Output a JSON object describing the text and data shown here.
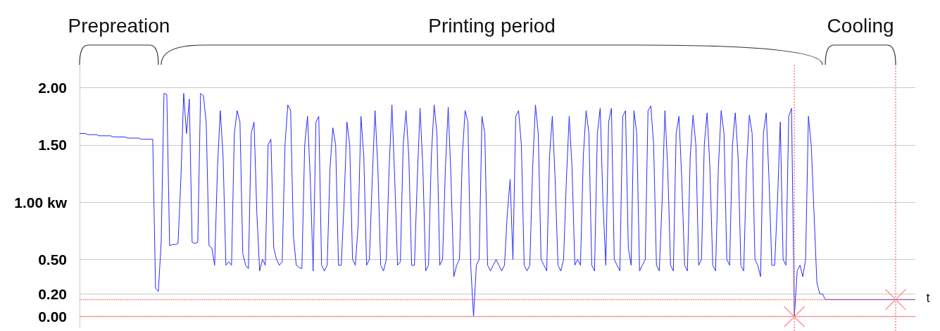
{
  "chart_data": {
    "type": "line",
    "categories": [
      null,
      null,
      null,
      null,
      null,
      null,
      null,
      null,
      null,
      null,
      null,
      null,
      null,
      null,
      null,
      null,
      null,
      null,
      null,
      null,
      null,
      null,
      null,
      null,
      null,
      null,
      null,
      null,
      null,
      null,
      null,
      null,
      null,
      null,
      null,
      null,
      null,
      null,
      null,
      null,
      null,
      null,
      null,
      null,
      null,
      null,
      null,
      null,
      null,
      null,
      null,
      null,
      null,
      null,
      null,
      null,
      null,
      null,
      null,
      null,
      null,
      null,
      null,
      null,
      null,
      null,
      null,
      null,
      null,
      null,
      null,
      null,
      null,
      null,
      null,
      null,
      null,
      null,
      null,
      null,
      null,
      null,
      null,
      null,
      null,
      null,
      null,
      null,
      null,
      null,
      null,
      null,
      null,
      null,
      null,
      null,
      null,
      null,
      null,
      null,
      null,
      null,
      null,
      null,
      null,
      null,
      null,
      null,
      null,
      null,
      null,
      null,
      null,
      null,
      null,
      null,
      null,
      null,
      null,
      null,
      null,
      null,
      null,
      null,
      null,
      null,
      null,
      null,
      null,
      null,
      null,
      null,
      null,
      null,
      null,
      null,
      null,
      null,
      null,
      null,
      null,
      null,
      null,
      null,
      null,
      null,
      null,
      null,
      null,
      null,
      null,
      null,
      null,
      null,
      null,
      null,
      null,
      null,
      null,
      null,
      null,
      null,
      null,
      null,
      null,
      null,
      null,
      null,
      null,
      null,
      null,
      null,
      null,
      null,
      null,
      null,
      null,
      null,
      null,
      null,
      null,
      null,
      null,
      null,
      null,
      null,
      null,
      null,
      null,
      null,
      null,
      null,
      null,
      null,
      null,
      null,
      null,
      null,
      null,
      null,
      null,
      null,
      null,
      null,
      null,
      null,
      null,
      null,
      null,
      null,
      null,
      null,
      null,
      null,
      null,
      null,
      null,
      null,
      null,
      null,
      null,
      null,
      null,
      null,
      null,
      null,
      null,
      null,
      null,
      null,
      null,
      null,
      null,
      null,
      null,
      null,
      null,
      null,
      null,
      null,
      null,
      null,
      null,
      null,
      null,
      null,
      null,
      null,
      null,
      null,
      null,
      null,
      null,
      null,
      null,
      null,
      null,
      null,
      null,
      null,
      null,
      null,
      null,
      null,
      null,
      null,
      null,
      null,
      null,
      null,
      null,
      null,
      null,
      null,
      null,
      null,
      null,
      null,
      null,
      null,
      null,
      null,
      null,
      null,
      null,
      null,
      null,
      null,
      null,
      null,
      null,
      null,
      null,
      null,
      null,
      null,
      null,
      null
    ],
    "series": [
      {
        "color": "#2b2bff",
        "values": [
          1.6,
          1.6,
          1.6,
          1.59,
          1.59,
          1.59,
          1.59,
          1.58,
          1.58,
          1.58,
          1.58,
          1.58,
          1.57,
          1.57,
          1.57,
          1.57,
          1.57,
          1.56,
          1.56,
          1.56,
          1.56,
          1.56,
          1.55,
          1.55,
          1.55,
          1.55,
          1.55,
          0.25,
          0.22,
          0.65,
          1.95,
          1.94,
          0.62,
          0.63,
          0.63,
          0.64,
          1.2,
          1.95,
          1.6,
          1.9,
          0.65,
          0.64,
          0.65,
          1.95,
          1.93,
          1.7,
          0.62,
          0.6,
          0.45,
          1.3,
          1.8,
          1.4,
          0.45,
          0.48,
          0.45,
          1.6,
          1.8,
          1.7,
          0.55,
          0.45,
          0.42,
          1.6,
          1.7,
          0.9,
          0.4,
          0.5,
          0.45,
          1.5,
          1.55,
          0.6,
          0.5,
          0.45,
          0.48,
          1.5,
          1.85,
          1.8,
          0.7,
          0.45,
          0.43,
          0.42,
          1.5,
          1.75,
          1.2,
          0.4,
          1.7,
          1.75,
          0.45,
          0.4,
          0.45,
          1.3,
          1.65,
          1.5,
          0.45,
          0.45,
          1.0,
          1.7,
          1.5,
          0.5,
          0.45,
          0.8,
          1.75,
          1.4,
          0.45,
          0.5,
          1.2,
          1.8,
          1.3,
          0.45,
          0.4,
          0.5,
          1.3,
          1.85,
          1.2,
          0.45,
          0.48,
          1.5,
          1.8,
          1.4,
          0.45,
          0.45,
          1.2,
          1.82,
          1.3,
          0.4,
          0.45,
          1.4,
          1.85,
          1.6,
          0.45,
          0.5,
          1.3,
          1.83,
          1.2,
          0.35,
          0.45,
          0.5,
          1.4,
          1.8,
          1.7,
          0.45,
          0.0,
          0.45,
          0.5,
          1.75,
          1.6,
          0.45,
          0.4,
          0.45,
          0.5,
          0.45,
          0.4,
          0.45,
          0.9,
          1.2,
          0.5,
          1.75,
          1.8,
          1.5,
          0.45,
          0.4,
          0.45,
          1.3,
          1.85,
          1.6,
          0.5,
          0.45,
          0.4,
          1.4,
          1.75,
          1.2,
          0.45,
          0.4,
          0.5,
          1.2,
          1.75,
          1.3,
          0.45,
          0.5,
          0.45,
          1.4,
          1.8,
          1.6,
          0.45,
          0.4,
          1.6,
          1.82,
          1.0,
          0.45,
          1.7,
          1.82,
          0.5,
          0.45,
          0.4,
          1.75,
          1.8,
          0.6,
          0.45,
          1.8,
          1.6,
          0.4,
          0.45,
          0.5,
          1.8,
          1.84,
          1.5,
          0.45,
          0.4,
          1.0,
          1.8,
          1.3,
          0.45,
          0.4,
          1.6,
          1.75,
          1.2,
          0.45,
          0.4,
          1.4,
          1.76,
          1.5,
          0.45,
          0.5,
          1.5,
          1.78,
          1.3,
          0.45,
          0.4,
          1.3,
          1.8,
          1.6,
          0.5,
          0.45,
          1.5,
          1.78,
          1.4,
          0.45,
          0.4,
          1.3,
          1.76,
          1.6,
          0.5,
          0.45,
          0.35,
          1.6,
          1.78,
          1.2,
          0.45,
          0.45,
          1.0,
          1.7,
          0.5,
          0.45,
          1.75,
          1.82,
          0.0,
          0.4,
          0.45,
          0.35,
          0.5,
          1.75,
          1.5,
          0.9,
          0.3,
          0.2,
          0.2,
          0.15,
          0.15,
          0.15,
          0.15,
          0.15,
          0.15,
          0.15,
          0.15,
          0.15,
          0.15,
          0.15,
          0.15,
          0.15,
          0.15,
          0.15,
          0.15,
          0.15,
          0.15,
          0.15,
          0.15,
          0.15,
          0.15,
          0.15,
          0.15,
          0.15,
          0.15,
          0.15,
          0.15,
          0.15,
          0.15,
          0.15,
          0.15,
          0.15
        ]
      }
    ],
    "ylim": [
      -0.1,
      2.2
    ],
    "yticks": [
      {
        "value": 0,
        "label": "0.00"
      },
      {
        "value": 0.2,
        "label": "0.20"
      },
      {
        "value": 0.5,
        "label": "0.50"
      },
      {
        "value": 1,
        "label": "1.00 kw"
      },
      {
        "value": 1.5,
        "label": "1.50"
      },
      {
        "value": 2,
        "label": "2.00"
      }
    ],
    "grid": "y",
    "tick_labels": "y",
    "line_style": "solid",
    "ref_lines": [
      {
        "axis": "y",
        "value": 0.15,
        "color": "#ff6666",
        "line_style": "dotted"
      },
      {
        "axis": "y",
        "value": 0,
        "color": "#ff6666",
        "line_style": "dotted"
      }
    ],
    "annotations": [
      "Prepreation",
      "Printing period",
      "Cooling",
      "t"
    ]
  }
}
